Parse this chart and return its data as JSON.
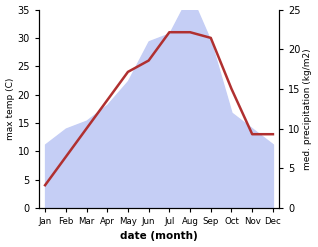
{
  "months": [
    "Jan",
    "Feb",
    "Mar",
    "Apr",
    "May",
    "Jun",
    "Jul",
    "Aug",
    "Sep",
    "Oct",
    "Nov",
    "Dec"
  ],
  "temp": [
    4,
    9,
    14,
    19,
    24,
    26,
    31,
    31,
    30,
    21,
    13,
    13
  ],
  "precip": [
    8,
    10,
    11,
    13,
    16,
    21,
    22,
    27,
    21,
    12,
    10,
    8
  ],
  "temp_color": "#b03030",
  "precip_fill_color": "#c5cef5",
  "temp_ylim": [
    0,
    35
  ],
  "precip_ylim": [
    0,
    25
  ],
  "xlabel": "date (month)",
  "ylabel_left": "max temp (C)",
  "ylabel_right": "med. precipitation (kg/m2)",
  "precip_yticks": [
    0,
    5,
    10,
    15,
    20,
    25
  ],
  "temp_yticks": [
    0,
    5,
    10,
    15,
    20,
    25,
    30,
    35
  ],
  "temp_tick_labels": [
    "0",
    "5",
    "10",
    "15",
    "20",
    "25",
    "30",
    "35"
  ]
}
